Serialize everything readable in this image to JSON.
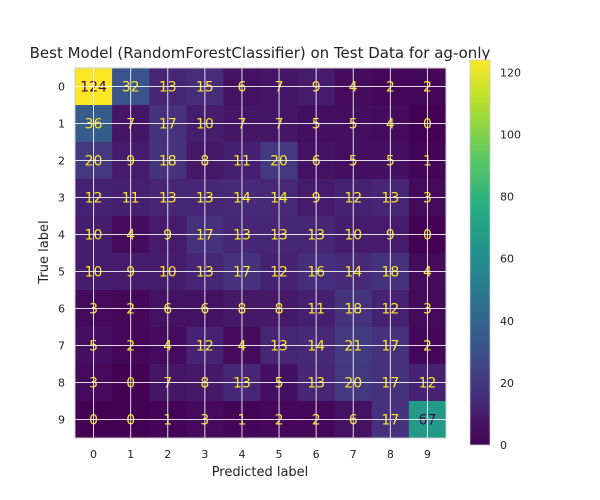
{
  "chart_data": {
    "type": "heatmap",
    "title": "Best Model (RandomForestClassifier) on Test Data for ag-only",
    "xlabel": "Predicted label",
    "ylabel": "True label",
    "x_categories": [
      "0",
      "1",
      "2",
      "3",
      "4",
      "5",
      "6",
      "7",
      "8",
      "9"
    ],
    "y_categories": [
      "0",
      "1",
      "2",
      "3",
      "4",
      "5",
      "6",
      "7",
      "8",
      "9"
    ],
    "matrix": [
      [
        124,
        32,
        13,
        15,
        6,
        7,
        9,
        4,
        2,
        2
      ],
      [
        36,
        7,
        17,
        10,
        7,
        7,
        5,
        5,
        4,
        0
      ],
      [
        20,
        9,
        18,
        8,
        11,
        20,
        6,
        5,
        5,
        1
      ],
      [
        12,
        11,
        13,
        13,
        14,
        14,
        9,
        12,
        13,
        3
      ],
      [
        10,
        4,
        9,
        17,
        13,
        13,
        13,
        10,
        9,
        0
      ],
      [
        10,
        9,
        10,
        13,
        17,
        12,
        16,
        14,
        18,
        4
      ],
      [
        3,
        2,
        6,
        6,
        8,
        8,
        11,
        18,
        12,
        3
      ],
      [
        5,
        2,
        4,
        12,
        4,
        13,
        14,
        21,
        17,
        2
      ],
      [
        3,
        0,
        7,
        8,
        13,
        5,
        13,
        20,
        17,
        12
      ],
      [
        0,
        0,
        1,
        3,
        1,
        2,
        2,
        6,
        17,
        67
      ]
    ],
    "colormap": "viridis",
    "vmin": 0,
    "vmax": 124,
    "colorbar_ticks": [
      0,
      20,
      40,
      60,
      80,
      100,
      120
    ],
    "grid": true,
    "text_colors": {
      "light": "#fde725",
      "dark": "#440154"
    }
  }
}
